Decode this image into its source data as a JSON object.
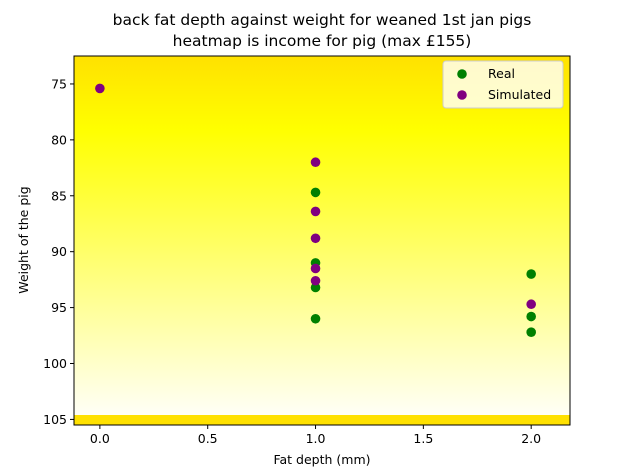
{
  "chart_data": {
    "type": "scatter",
    "title_lines": [
      "back fat depth against weight for weaned 1st jan pigs",
      "heatmap is income for pig (max £155)"
    ],
    "xlabel": "Fat depth (mm)",
    "ylabel": "Weight of the pig",
    "xlim": [
      -0.12,
      2.18
    ],
    "ylim": [
      105.5,
      72.5
    ],
    "y_inverted": true,
    "x_ticks": [
      0.0,
      0.5,
      1.0,
      1.5,
      2.0
    ],
    "x_tick_labels": [
      "0.0",
      "0.5",
      "1.0",
      "1.5",
      "2.0"
    ],
    "y_ticks": [
      75,
      80,
      85,
      90,
      95,
      100,
      105
    ],
    "y_tick_labels": [
      "75",
      "80",
      "85",
      "90",
      "95",
      "100",
      "105"
    ],
    "background": {
      "kind": "heatmap-gradient",
      "top_color": "#ffe100",
      "peak_color": "#ffff00",
      "bottom_color": "#ffffff",
      "band_color": "#ffe100"
    },
    "legend": {
      "position": "top-right"
    },
    "series": [
      {
        "name": "Real",
        "color": "#008000",
        "points": [
          {
            "x": 1.0,
            "y": 84.7
          },
          {
            "x": 1.0,
            "y": 91.0
          },
          {
            "x": 1.0,
            "y": 93.2
          },
          {
            "x": 1.0,
            "y": 96.0
          },
          {
            "x": 2.0,
            "y": 92.0
          },
          {
            "x": 2.0,
            "y": 95.8
          },
          {
            "x": 2.0,
            "y": 97.2
          }
        ]
      },
      {
        "name": "Simulated",
        "color": "#800080",
        "points": [
          {
            "x": 0.0,
            "y": 75.4
          },
          {
            "x": 1.0,
            "y": 82.0
          },
          {
            "x": 1.0,
            "y": 86.4
          },
          {
            "x": 1.0,
            "y": 88.8
          },
          {
            "x": 1.0,
            "y": 91.5
          },
          {
            "x": 1.0,
            "y": 92.6
          },
          {
            "x": 2.0,
            "y": 94.7
          }
        ]
      }
    ]
  }
}
